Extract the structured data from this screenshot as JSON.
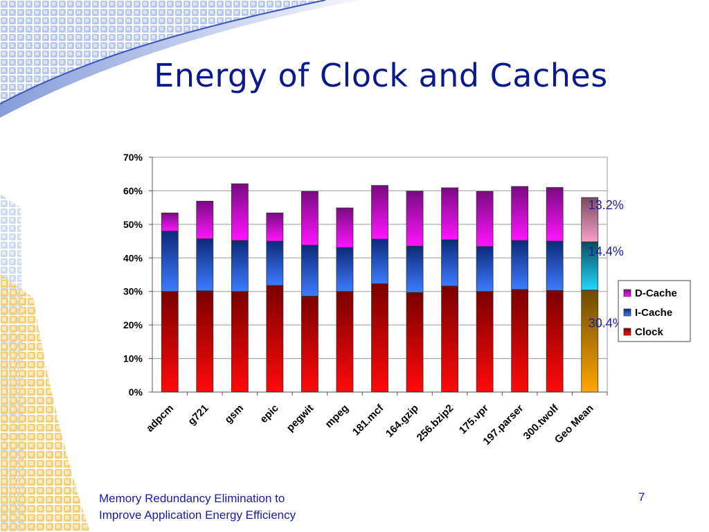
{
  "slide": {
    "title": "Energy of Clock and Caches",
    "footer_line1": "Memory Redundancy Elimination to",
    "footer_line2": "Improve Application Energy Efficiency",
    "page_number": "7"
  },
  "colors": {
    "clock": "#e8001a",
    "icache": "#2a5fd6",
    "dcache": "#e61ee6",
    "geo_clock": "#f5a000",
    "geo_icache": "#19c7ee",
    "geo_dcache": "#e77fb6",
    "label_blue": "#1a1aa6"
  },
  "chart_data": {
    "type": "bar",
    "stacked": true,
    "categories": [
      "adpcm",
      "g721",
      "gsm",
      "epic",
      "pegwit",
      "mpeg",
      "181.mcf",
      "164.gzip",
      "256.bzip2",
      "175.vpr",
      "197.parser",
      "300.twolf",
      "Geo Mean"
    ],
    "series": [
      {
        "name": "Clock",
        "values": [
          30.0,
          30.2,
          30.0,
          31.8,
          28.6,
          30.0,
          32.3,
          29.7,
          31.6,
          30.0,
          30.6,
          30.3,
          30.4
        ]
      },
      {
        "name": "I-Cache",
        "values": [
          18.0,
          15.5,
          15.2,
          13.2,
          15.2,
          13.1,
          13.3,
          13.8,
          13.8,
          13.4,
          14.6,
          14.7,
          14.4
        ]
      },
      {
        "name": "D-Cache",
        "values": [
          5.4,
          11.2,
          16.9,
          8.4,
          16.0,
          11.8,
          16.0,
          16.4,
          15.5,
          16.4,
          16.1,
          16.0,
          13.2
        ]
      }
    ],
    "geo_labels": [
      "30.4%",
      "14.4%",
      "13.2%"
    ],
    "y_ticks": [
      "0%",
      "10%",
      "20%",
      "30%",
      "40%",
      "50%",
      "60%",
      "70%"
    ],
    "legend": [
      "D-Cache",
      "I-Cache",
      "Clock"
    ],
    "ylim": [
      0,
      70
    ],
    "grid": true,
    "legend_position": "right"
  }
}
